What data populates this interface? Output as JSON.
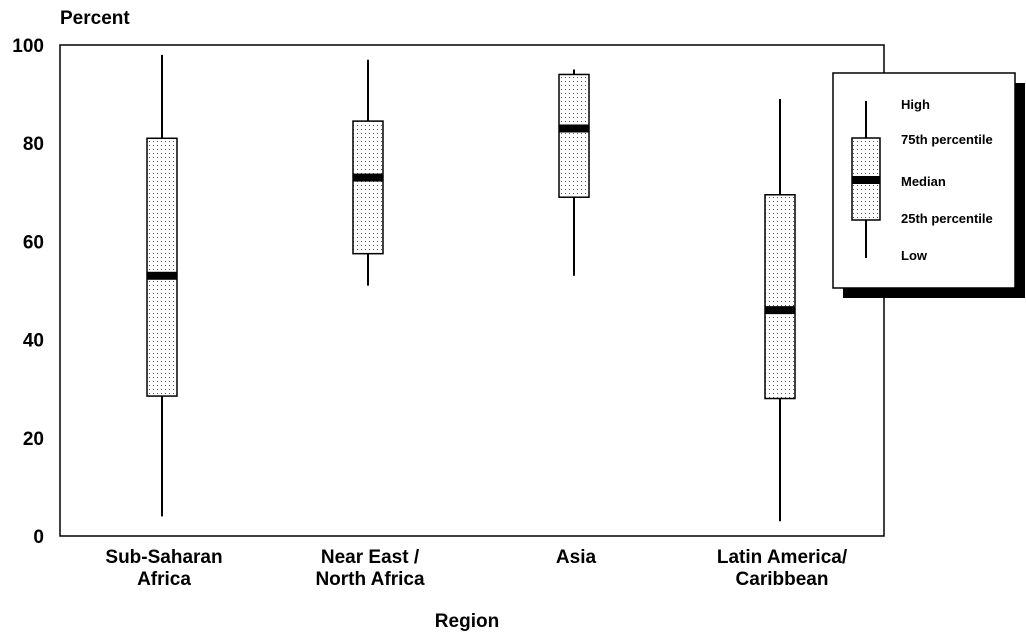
{
  "chart_data": {
    "type": "boxplot",
    "ylabel": "Percent",
    "xlabel": "Region",
    "ylim": [
      0,
      100
    ],
    "yticks": [
      0,
      20,
      40,
      60,
      80,
      100
    ],
    "grid": false,
    "legend_position": "top-right",
    "categories": [
      {
        "lines": [
          "Sub-Saharan",
          "Africa"
        ]
      },
      {
        "lines": [
          "Near East /",
          "North Africa"
        ]
      },
      {
        "lines": [
          "Asia"
        ]
      },
      {
        "lines": [
          "Latin America/",
          "Caribbean"
        ]
      }
    ],
    "boxes": [
      {
        "low": 4,
        "q1": 28.5,
        "median": 53,
        "q3": 81,
        "high": 98
      },
      {
        "low": 51,
        "q1": 57.5,
        "median": 73,
        "q3": 84.5,
        "high": 97
      },
      {
        "low": 53,
        "q1": 69,
        "median": 83,
        "q3": 94,
        "high": 95
      },
      {
        "low": 3,
        "q1": 28,
        "median": 46,
        "q3": 69.5,
        "high": 89
      }
    ],
    "legend": {
      "high": "High",
      "q3": "75th percentile",
      "median": "Median",
      "q1": "25th percentile",
      "low": "Low"
    }
  }
}
